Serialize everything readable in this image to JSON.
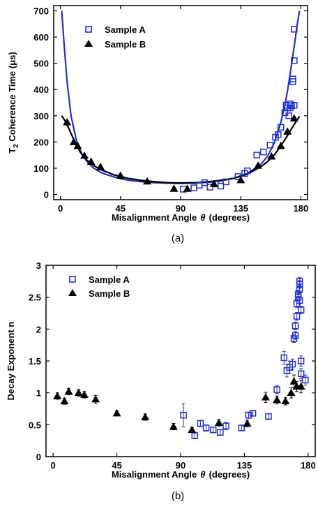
{
  "chart_data": [
    {
      "type": "scatter",
      "panel_label": "(a)",
      "xlabel_main": "Misalignment Angle",
      "xlabel_symbol": "θ",
      "xlabel_units": "(degrees)",
      "ylabel_pre": "T",
      "ylabel_sub": "2",
      "ylabel_post": " Coherence Time (μs)",
      "xlim": [
        -5,
        185
      ],
      "ylim": [
        -20,
        720
      ],
      "xticks": [
        0,
        45,
        90,
        135,
        180
      ],
      "yticks": [
        0,
        100,
        200,
        300,
        400,
        500,
        600,
        700
      ],
      "legend_position": "top-left",
      "grid": false,
      "colors": {
        "sample_a": "#1f2fd0",
        "sample_b": "#000000",
        "fit_a": "#1f2fd0",
        "fit_b": "#000000"
      },
      "series": [
        {
          "name": "Sample A",
          "marker": "open-square",
          "x": [
            92,
            100,
            104,
            108,
            112,
            116,
            120,
            124,
            133,
            138,
            140,
            147,
            152,
            157,
            161,
            163,
            165,
            168,
            169,
            170,
            171,
            172,
            172,
            173,
            174,
            174,
            175,
            175,
            175
          ],
          "y": [
            20,
            25,
            35,
            45,
            28,
            40,
            32,
            48,
            68,
            80,
            90,
            150,
            162,
            188,
            218,
            228,
            256,
            312,
            340,
            330,
            300,
            330,
            345,
            338,
            430,
            440,
            510,
            630,
            340
          ]
        },
        {
          "name": "Sample B",
          "marker": "filled-triangle",
          "x": [
            5,
            10,
            13,
            18,
            23,
            30,
            45,
            65,
            85,
            95,
            115,
            135,
            148,
            158,
            165,
            170,
            175
          ],
          "y": [
            275,
            200,
            185,
            148,
            125,
            105,
            72,
            50,
            22,
            22,
            40,
            55,
            110,
            145,
            185,
            240,
            290
          ]
        },
        {
          "marker": "line",
          "x": [
            1,
            3,
            5,
            8,
            12,
            16,
            20,
            25,
            30,
            35,
            40,
            45,
            50,
            60,
            70,
            80,
            90,
            100,
            110,
            120,
            130,
            140,
            150,
            155,
            160,
            165,
            168,
            170,
            172,
            174,
            176,
            177,
            178,
            179
          ],
          "y": [
            700,
            560,
            430,
            300,
            205,
            155,
            125,
            100,
            85,
            75,
            67,
            60,
            55,
            49,
            45,
            43,
            42,
            43,
            46,
            52,
            62,
            80,
            115,
            145,
            195,
            275,
            340,
            395,
            460,
            530,
            600,
            640,
            670,
            700
          ]
        },
        {
          "marker": "line",
          "x": [
            1,
            3,
            6,
            10,
            15,
            20,
            25,
            30,
            40,
            50,
            60,
            70,
            80,
            90,
            100,
            110,
            120,
            130,
            140,
            150,
            155,
            160,
            165,
            170,
            173,
            176,
            178,
            179
          ],
          "y": [
            300,
            285,
            255,
            210,
            160,
            130,
            110,
            95,
            75,
            62,
            54,
            49,
            45,
            44,
            45,
            48,
            54,
            62,
            78,
            105,
            125,
            150,
            185,
            225,
            250,
            275,
            290,
            298
          ]
        }
      ]
    },
    {
      "type": "scatter",
      "panel_label": "(b)",
      "xlabel_main": "Misalignment Angle",
      "xlabel_symbol": "θ",
      "xlabel_units": "(degrees)",
      "ylabel": "Decay Exponent n",
      "xlim": [
        -5,
        185
      ],
      "ylim": [
        0,
        3
      ],
      "xticks": [
        0,
        45,
        90,
        135,
        180
      ],
      "yticks": [
        0,
        0.5,
        1,
        1.5,
        2,
        2.5,
        3
      ],
      "ytick_labels": [
        "0",
        "0.5",
        "1",
        "1.5",
        "2",
        "2.5",
        "3"
      ],
      "legend_position": "top-left",
      "grid": false,
      "colors": {
        "sample_a": "#1f2fd0",
        "sample_b": "#000000"
      },
      "series": [
        {
          "name": "Sample A",
          "marker": "open-square",
          "x": [
            92,
            100,
            104,
            108,
            113,
            118,
            122,
            133,
            138,
            141,
            152,
            158,
            163,
            165,
            167,
            169,
            170,
            171,
            171,
            172,
            172,
            173,
            173,
            174,
            174,
            174,
            174,
            175,
            175,
            175,
            178
          ],
          "y": [
            0.65,
            0.33,
            0.52,
            0.45,
            0.42,
            0.38,
            0.48,
            0.45,
            0.65,
            0.68,
            0.63,
            1.05,
            1.55,
            1.35,
            1.4,
            1.45,
            1.85,
            1.9,
            2.05,
            2.2,
            2.4,
            2.5,
            2.55,
            2.62,
            2.7,
            2.75,
            2.45,
            2.3,
            1.5,
            1.3,
            1.2
          ],
          "yerr": [
            0.18,
            0.05,
            0.05,
            0.05,
            0.04,
            0.04,
            0.06,
            0.04,
            0.05,
            0.04,
            0.04,
            0.06,
            0.1,
            0.1,
            0.1,
            0.08,
            0.06,
            0.06,
            0.06,
            0.06,
            0.06,
            0.06,
            0.06,
            0.06,
            0.06,
            0.06,
            0.06,
            0.06,
            0.08,
            0.08,
            0.08
          ]
        },
        {
          "name": "Sample B",
          "marker": "filled-triangle",
          "x": [
            3,
            8,
            11,
            18,
            22,
            30,
            45,
            65,
            85,
            98,
            117,
            137,
            150,
            158,
            164,
            168,
            170,
            172,
            175
          ],
          "y": [
            0.95,
            0.87,
            1.02,
            1.0,
            0.97,
            0.9,
            0.68,
            0.62,
            0.47,
            0.42,
            0.53,
            0.52,
            0.93,
            0.89,
            0.87,
            1.0,
            1.18,
            1.1,
            1.1
          ],
          "yerr": [
            0.05,
            0.05,
            0.05,
            0.05,
            0.05,
            0.06,
            0.04,
            0.05,
            0.05,
            0.04,
            0.05,
            0.05,
            0.08,
            0.06,
            0.06,
            0.08,
            0.1,
            0.08,
            0.1
          ]
        }
      ]
    }
  ]
}
